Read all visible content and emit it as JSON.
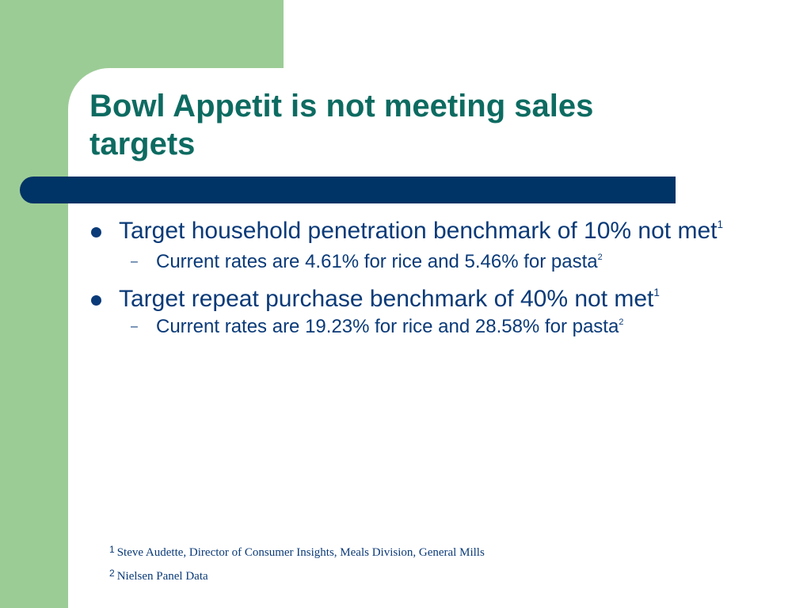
{
  "slide": {
    "title": "Bowl Appetit is not meeting sales targets",
    "colors": {
      "green_band": "#9ccc96",
      "title_text": "#0d6b61",
      "title_bar": "#003366",
      "body_text": "#0a3a78"
    },
    "bullets": [
      {
        "text": "Target household penetration benchmark of 10% not met",
        "ref": "1",
        "sub": {
          "text": "Current rates are 4.61% for rice and 5.46% for pasta",
          "ref": "2"
        }
      },
      {
        "text": "Target repeat purchase benchmark of 40% not met",
        "ref": "1",
        "sub": {
          "text": "Current rates are 19.23% for rice and 28.58% for pasta",
          "ref": "2"
        }
      }
    ],
    "sub_marker": "–",
    "footnotes": [
      {
        "num": "1",
        "text": "Steve Audette, Director of Consumer Insights, Meals Division, General Mills"
      },
      {
        "num": "2",
        "text": "Nielsen Panel Data"
      }
    ]
  }
}
